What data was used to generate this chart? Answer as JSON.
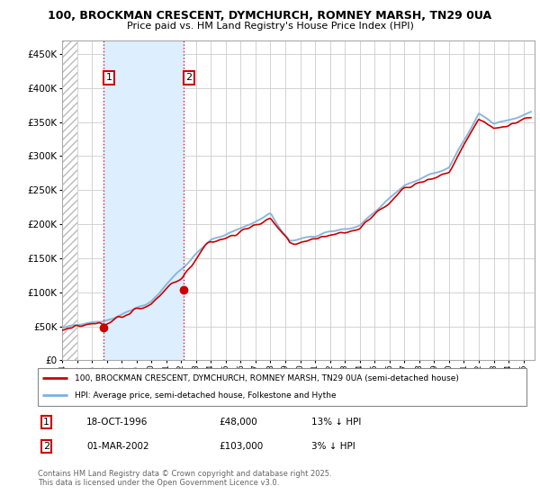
{
  "title1": "100, BROCKMAN CRESCENT, DYMCHURCH, ROMNEY MARSH, TN29 0UA",
  "title2": "Price paid vs. HM Land Registry's House Price Index (HPI)",
  "xlim_start": 1994.0,
  "xlim_end": 2025.75,
  "ylim_min": 0,
  "ylim_max": 470000,
  "hatch_end_year": 1995.0,
  "sale1_year": 1996.79,
  "sale1_price": 48000,
  "sale1_label": "1",
  "sale2_year": 2002.17,
  "sale2_price": 103000,
  "sale2_label": "2",
  "red_line_color": "#cc0000",
  "blue_line_color": "#80b0d8",
  "blue_shade_color": "#ddeeff",
  "hatch_color": "#bbbbbb",
  "grid_color": "#cccccc",
  "yticks": [
    0,
    50000,
    100000,
    150000,
    200000,
    250000,
    300000,
    350000,
    400000,
    450000
  ],
  "ytick_labels": [
    "£0",
    "£50K",
    "£100K",
    "£150K",
    "£200K",
    "£250K",
    "£300K",
    "£350K",
    "£400K",
    "£450K"
  ],
  "legend_label_red": "100, BROCKMAN CRESCENT, DYMCHURCH, ROMNEY MARSH, TN29 0UA (semi-detached house)",
  "legend_label_blue": "HPI: Average price, semi-detached house, Folkestone and Hythe",
  "table_row1": [
    "1",
    "18-OCT-1996",
    "£48,000",
    "13% ↓ HPI"
  ],
  "table_row2": [
    "2",
    "01-MAR-2002",
    "£103,000",
    "3% ↓ HPI"
  ],
  "footer": "Contains HM Land Registry data © Crown copyright and database right 2025.\nThis data is licensed under the Open Government Licence v3.0."
}
